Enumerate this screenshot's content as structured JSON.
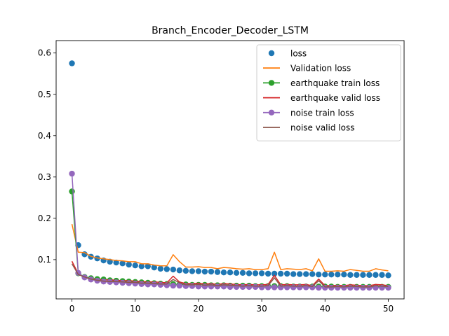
{
  "chart_data": {
    "type": "line",
    "title": "Branch_Encoder_Decoder_LSTM",
    "xlabel": "",
    "ylabel": "",
    "xlim": [
      -2.5,
      52.5
    ],
    "ylim": [
      0.005,
      0.63
    ],
    "xticks": [
      0,
      10,
      20,
      30,
      40,
      50
    ],
    "yticks": [
      0.1,
      0.2,
      0.3,
      0.4,
      0.5,
      0.6
    ],
    "xtick_labels": [
      "0",
      "10",
      "20",
      "30",
      "40",
      "50"
    ],
    "ytick_labels": [
      "0.1",
      "0.2",
      "0.3",
      "0.4",
      "0.5",
      "0.6"
    ],
    "grid": false,
    "legend_position": "top-right",
    "x": [
      0,
      1,
      2,
      3,
      4,
      5,
      6,
      7,
      8,
      9,
      10,
      11,
      12,
      13,
      14,
      15,
      16,
      17,
      18,
      19,
      20,
      21,
      22,
      23,
      24,
      25,
      26,
      27,
      28,
      29,
      30,
      31,
      32,
      33,
      34,
      35,
      36,
      37,
      38,
      39,
      40,
      41,
      42,
      43,
      44,
      45,
      46,
      47,
      48,
      49,
      50
    ],
    "series": [
      {
        "name": "loss",
        "style": "markers",
        "color": "#1f77b4",
        "values": [
          0.575,
          0.135,
          0.113,
          0.107,
          0.103,
          0.098,
          0.095,
          0.093,
          0.091,
          0.088,
          0.086,
          0.084,
          0.084,
          0.081,
          0.078,
          0.077,
          0.076,
          0.074,
          0.073,
          0.072,
          0.072,
          0.071,
          0.071,
          0.07,
          0.069,
          0.069,
          0.068,
          0.068,
          0.067,
          0.067,
          0.067,
          0.066,
          0.066,
          0.066,
          0.066,
          0.065,
          0.065,
          0.065,
          0.065,
          0.064,
          0.064,
          0.064,
          0.064,
          0.064,
          0.063,
          0.063,
          0.063,
          0.063,
          0.063,
          0.063,
          0.062
        ]
      },
      {
        "name": "Validation loss",
        "style": "line",
        "color": "#ff7f0e",
        "values": [
          0.186,
          0.118,
          0.117,
          0.108,
          0.104,
          0.102,
          0.1,
          0.098,
          0.097,
          0.095,
          0.095,
          0.09,
          0.09,
          0.087,
          0.085,
          0.085,
          0.112,
          0.095,
          0.082,
          0.082,
          0.083,
          0.081,
          0.081,
          0.078,
          0.081,
          0.08,
          0.078,
          0.077,
          0.078,
          0.076,
          0.076,
          0.078,
          0.118,
          0.076,
          0.078,
          0.077,
          0.076,
          0.078,
          0.073,
          0.102,
          0.072,
          0.072,
          0.073,
          0.072,
          0.076,
          0.074,
          0.072,
          0.072,
          0.078,
          0.075,
          0.073
        ]
      },
      {
        "name": "earthquake train loss",
        "style": "line+markers",
        "color": "#2ca02c",
        "values": [
          0.265,
          0.067,
          0.058,
          0.055,
          0.053,
          0.052,
          0.05,
          0.049,
          0.048,
          0.047,
          0.046,
          0.045,
          0.044,
          0.043,
          0.042,
          0.041,
          0.041,
          0.04,
          0.04,
          0.039,
          0.039,
          0.039,
          0.038,
          0.038,
          0.038,
          0.037,
          0.037,
          0.037,
          0.037,
          0.036,
          0.036,
          0.036,
          0.036,
          0.036,
          0.036,
          0.035,
          0.035,
          0.035,
          0.035,
          0.035,
          0.035,
          0.035,
          0.034,
          0.034,
          0.034,
          0.034,
          0.034,
          0.034,
          0.034,
          0.034,
          0.034
        ]
      },
      {
        "name": "earthquake valid loss",
        "style": "line",
        "color": "#d62728",
        "values": [
          0.096,
          0.066,
          0.057,
          0.054,
          0.052,
          0.051,
          0.051,
          0.05,
          0.049,
          0.049,
          0.048,
          0.047,
          0.046,
          0.046,
          0.045,
          0.044,
          0.06,
          0.046,
          0.042,
          0.042,
          0.043,
          0.041,
          0.042,
          0.04,
          0.042,
          0.041,
          0.04,
          0.039,
          0.04,
          0.039,
          0.039,
          0.04,
          0.062,
          0.039,
          0.04,
          0.039,
          0.039,
          0.04,
          0.037,
          0.053,
          0.037,
          0.037,
          0.038,
          0.037,
          0.039,
          0.038,
          0.037,
          0.037,
          0.04,
          0.039,
          0.037
        ]
      },
      {
        "name": "noise train loss",
        "style": "line+markers",
        "color": "#9467bd",
        "values": [
          0.308,
          0.068,
          0.057,
          0.052,
          0.049,
          0.047,
          0.046,
          0.045,
          0.044,
          0.043,
          0.042,
          0.041,
          0.04,
          0.04,
          0.039,
          0.038,
          0.037,
          0.037,
          0.036,
          0.036,
          0.035,
          0.035,
          0.035,
          0.035,
          0.035,
          0.034,
          0.034,
          0.034,
          0.034,
          0.034,
          0.033,
          0.033,
          0.033,
          0.033,
          0.033,
          0.033,
          0.033,
          0.033,
          0.033,
          0.032,
          0.032,
          0.032,
          0.032,
          0.032,
          0.032,
          0.032,
          0.032,
          0.032,
          0.032,
          0.032,
          0.032
        ]
      },
      {
        "name": "noise valid loss",
        "style": "line",
        "color": "#8c564b",
        "values": [
          0.09,
          0.064,
          0.058,
          0.053,
          0.05,
          0.048,
          0.047,
          0.047,
          0.046,
          0.045,
          0.045,
          0.043,
          0.043,
          0.042,
          0.041,
          0.041,
          0.052,
          0.044,
          0.039,
          0.039,
          0.04,
          0.038,
          0.039,
          0.037,
          0.039,
          0.038,
          0.037,
          0.036,
          0.037,
          0.036,
          0.036,
          0.037,
          0.056,
          0.036,
          0.037,
          0.036,
          0.036,
          0.037,
          0.035,
          0.049,
          0.034,
          0.034,
          0.035,
          0.034,
          0.036,
          0.035,
          0.034,
          0.034,
          0.037,
          0.036,
          0.035
        ]
      }
    ]
  }
}
